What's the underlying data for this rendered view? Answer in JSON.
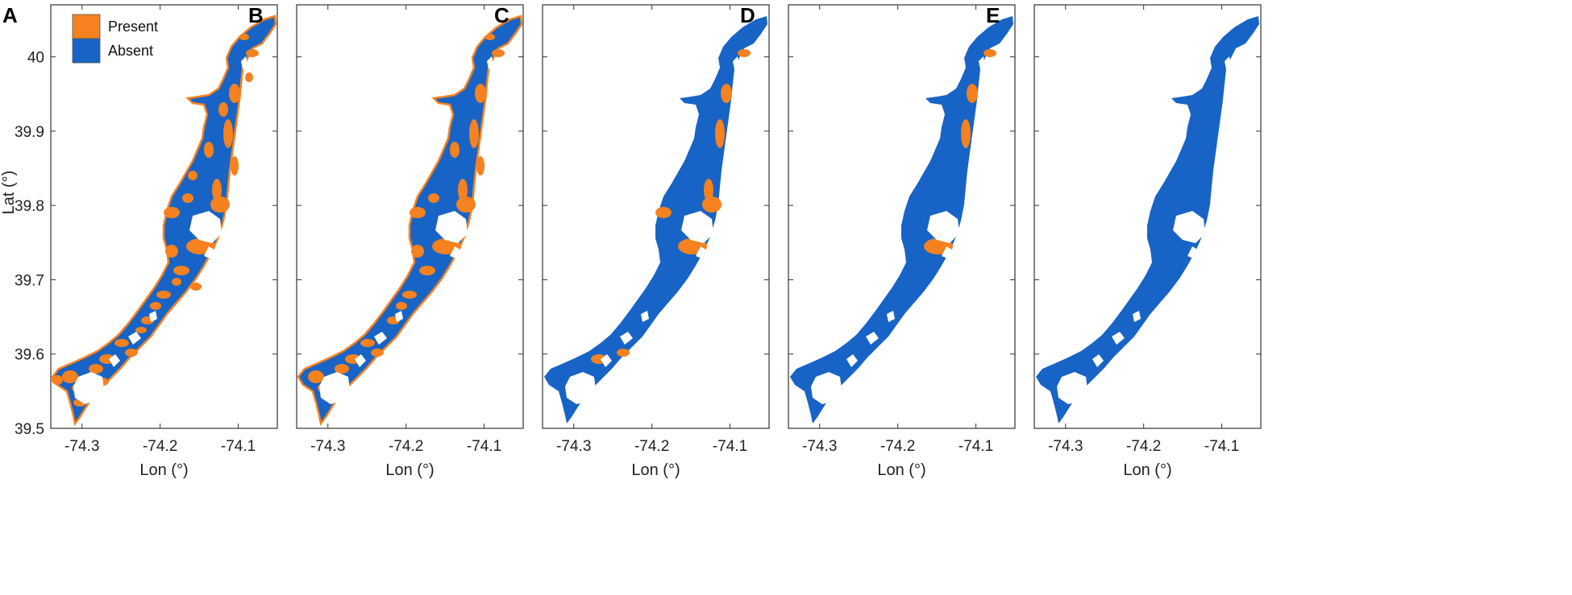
{
  "colors": {
    "present": "#F5811F",
    "absent": "#1764C6",
    "axis": "#333333"
  },
  "legend": {
    "present_label": "Present",
    "absent_label": "Absent",
    "placement": "top-left"
  },
  "axes": {
    "xlabel": "Lon (°)",
    "ylabel": "Lat (°)",
    "xlim": [
      -74.34,
      -74.05
    ],
    "ylim": [
      39.5,
      40.07
    ],
    "x_ticks": [
      "-74.3",
      "-74.2",
      "-74.1"
    ],
    "y_ticks": [
      "40",
      "39.9",
      "39.8",
      "39.7",
      "39.6",
      "39.5"
    ]
  },
  "panels": [
    {
      "letter": "A",
      "present_level": 0.35
    },
    {
      "letter": "B",
      "present_level": 0.25
    },
    {
      "letter": "C",
      "present_level": 0.1
    },
    {
      "letter": "D",
      "present_level": 0.04
    },
    {
      "letter": "E",
      "present_level": 0
    }
  ]
}
